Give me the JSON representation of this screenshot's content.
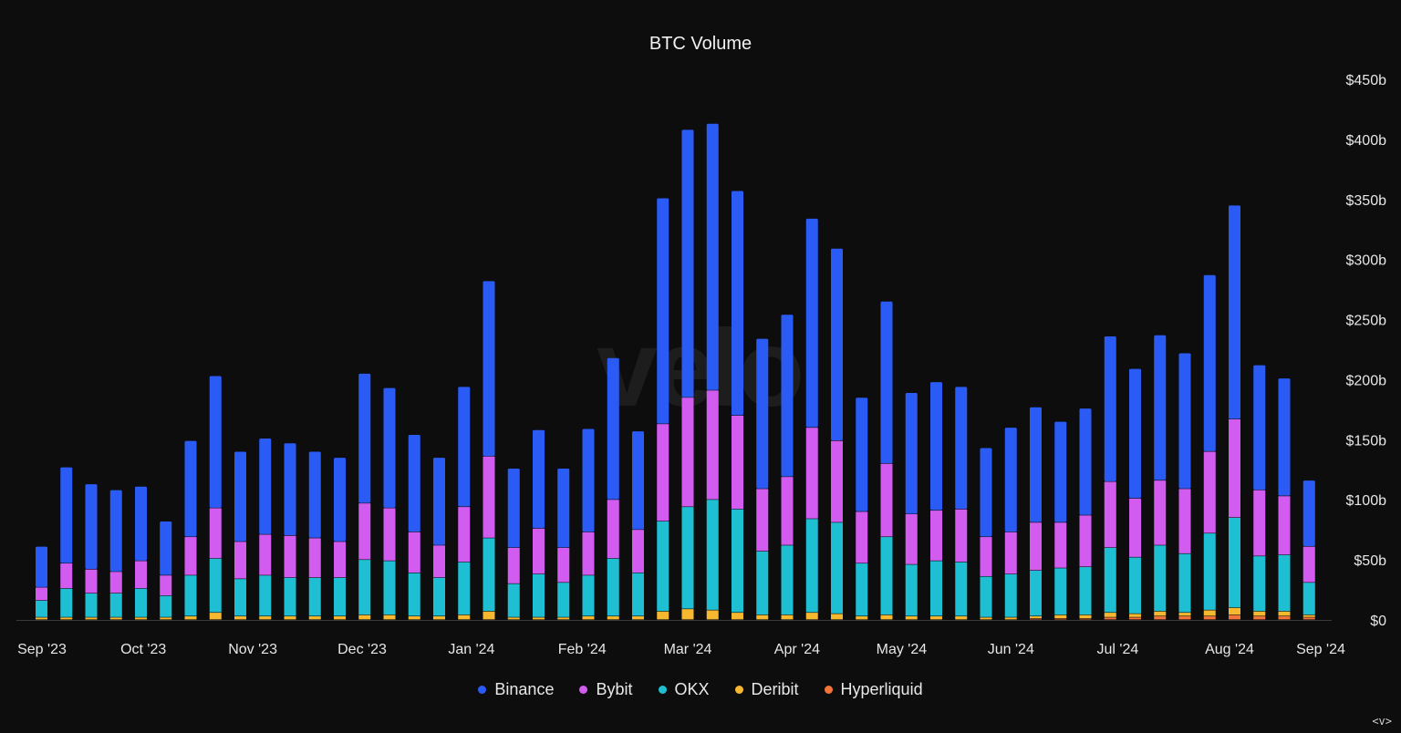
{
  "chart_data": {
    "type": "bar",
    "stacked": true,
    "title": "BTC Volume",
    "watermark": "velo",
    "ylim": [
      0,
      450
    ],
    "yticks": [
      0,
      50,
      100,
      150,
      200,
      250,
      300,
      350,
      400,
      450
    ],
    "ytick_labels": [
      "$0",
      "$50b",
      "$100b",
      "$150b",
      "$200b",
      "$250b",
      "$300b",
      "$350b",
      "$400b",
      "$450b"
    ],
    "x_labels": [
      {
        "label": "Sep '23",
        "index": -0.1
      },
      {
        "label": "Oct '23",
        "index": 4.1
      },
      {
        "label": "Nov '23",
        "index": 8.5
      },
      {
        "label": "Dec '23",
        "index": 12.9
      },
      {
        "label": "Jan '24",
        "index": 17.3
      },
      {
        "label": "Feb '24",
        "index": 21.75
      },
      {
        "label": "Mar '24",
        "index": 26.0
      },
      {
        "label": "Apr '24",
        "index": 30.4
      },
      {
        "label": "May '24",
        "index": 34.6
      },
      {
        "label": "Jun '24",
        "index": 39.0
      },
      {
        "label": "Jul '24",
        "index": 43.3
      },
      {
        "label": "Aug '24",
        "index": 47.8
      },
      {
        "label": "Sep '24",
        "index": 52.0
      }
    ],
    "series": [
      {
        "name": "Binance",
        "color": "#2a5cf5",
        "values": [
          34,
          80,
          71,
          68,
          62,
          45,
          80,
          110,
          75,
          80,
          77,
          72,
          70,
          108,
          100,
          81,
          73,
          100,
          146,
          66,
          82,
          66,
          86,
          118,
          82,
          188,
          223,
          222,
          187,
          125,
          135,
          174,
          160,
          95,
          135,
          101,
          107,
          102,
          74,
          87,
          96,
          84,
          89,
          121,
          108,
          121,
          113,
          147,
          178,
          104,
          98,
          55
        ]
      },
      {
        "name": "Bybit",
        "color": "#d35cf0",
        "values": [
          11,
          21,
          20,
          18,
          23,
          17,
          32,
          42,
          31,
          34,
          35,
          33,
          30,
          47,
          44,
          34,
          27,
          46,
          68,
          30,
          38,
          29,
          36,
          49,
          36,
          81,
          91,
          91,
          78,
          52,
          57,
          76,
          68,
          43,
          61,
          42,
          42,
          44,
          33,
          35,
          40,
          38,
          43,
          55,
          49,
          54,
          54,
          68,
          82,
          55,
          49,
          30
        ]
      },
      {
        "name": "OKX",
        "color": "#1fbfd3",
        "values": [
          14,
          24,
          20,
          20,
          24,
          18,
          34,
          45,
          31,
          34,
          32,
          32,
          32,
          46,
          45,
          36,
          32,
          44,
          61,
          28,
          36,
          29,
          34,
          48,
          36,
          75,
          85,
          92,
          86,
          53,
          58,
          78,
          76,
          44,
          65,
          43,
          46,
          45,
          34,
          36,
          38,
          39,
          40,
          54,
          47,
          55,
          49,
          64,
          75,
          46,
          47,
          27
        ]
      },
      {
        "name": "Deribit",
        "color": "#f5b82e",
        "values": [
          2,
          2,
          2,
          2,
          2,
          2,
          3,
          6,
          3,
          3,
          3,
          3,
          3,
          4,
          4,
          3,
          3,
          4,
          7,
          2,
          2,
          2,
          3,
          3,
          3,
          7,
          9,
          8,
          6,
          4,
          4,
          6,
          5,
          3,
          4,
          3,
          3,
          3,
          2,
          2,
          2,
          3,
          3,
          4,
          3,
          4,
          3,
          5,
          6,
          4,
          4,
          2
        ]
      },
      {
        "name": "Hyperliquid",
        "color": "#f2743a",
        "values": [
          0,
          0,
          0,
          0,
          0,
          0,
          0,
          0,
          0,
          0,
          0,
          0,
          0,
          0,
          0,
          0,
          0,
          0,
          0,
          0,
          0,
          0,
          0,
          0,
          0,
          0,
          0,
          0,
          0,
          0,
          0,
          0,
          0,
          0,
          0,
          0,
          0,
          0,
          0,
          0,
          1,
          1,
          1,
          2,
          2,
          3,
          3,
          3,
          4,
          3,
          3,
          2
        ]
      }
    ]
  },
  "legend": [
    {
      "name": "Binance",
      "color": "#2a5cf5"
    },
    {
      "name": "Bybit",
      "color": "#d35cf0"
    },
    {
      "name": "OKX",
      "color": "#1fbfd3"
    },
    {
      "name": "Deribit",
      "color": "#f5b82e"
    },
    {
      "name": "Hyperliquid",
      "color": "#f2743a"
    }
  ],
  "corner_label": "<v>"
}
